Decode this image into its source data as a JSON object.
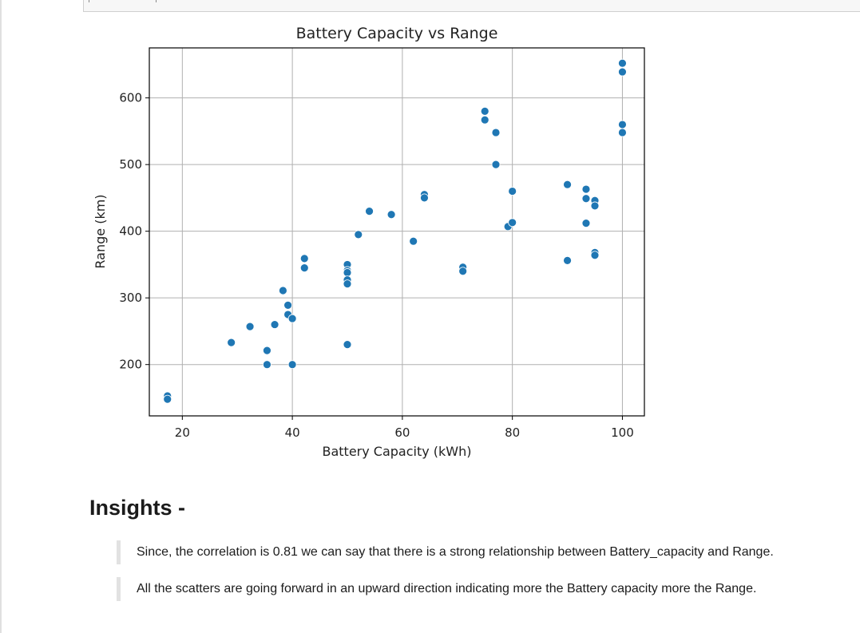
{
  "chart_data": {
    "type": "scatter",
    "title": "Battery Capacity vs Range",
    "xlabel": "Battery Capacity (kWh)",
    "ylabel": "Range (km)",
    "xlim": [
      14,
      104
    ],
    "ylim": [
      123,
      675
    ],
    "xticks": [
      20,
      40,
      60,
      80,
      100
    ],
    "yticks": [
      200,
      300,
      400,
      500,
      600
    ],
    "grid": true,
    "color": "#1f77b4",
    "points": [
      {
        "x": 17.3,
        "y": 153
      },
      {
        "x": 17.3,
        "y": 148
      },
      {
        "x": 28.9,
        "y": 233
      },
      {
        "x": 32.3,
        "y": 257
      },
      {
        "x": 35.4,
        "y": 221
      },
      {
        "x": 35.4,
        "y": 200
      },
      {
        "x": 36.8,
        "y": 260
      },
      {
        "x": 38.3,
        "y": 311
      },
      {
        "x": 39.2,
        "y": 289
      },
      {
        "x": 39.2,
        "y": 275
      },
      {
        "x": 40.0,
        "y": 269
      },
      {
        "x": 40.0,
        "y": 200
      },
      {
        "x": 42.2,
        "y": 359
      },
      {
        "x": 42.2,
        "y": 345
      },
      {
        "x": 50.0,
        "y": 350
      },
      {
        "x": 50.0,
        "y": 341
      },
      {
        "x": 50.0,
        "y": 338
      },
      {
        "x": 50.0,
        "y": 327
      },
      {
        "x": 50.0,
        "y": 321
      },
      {
        "x": 50.0,
        "y": 230
      },
      {
        "x": 52.0,
        "y": 395
      },
      {
        "x": 54.0,
        "y": 430
      },
      {
        "x": 58.0,
        "y": 425
      },
      {
        "x": 62.0,
        "y": 385
      },
      {
        "x": 64.0,
        "y": 455
      },
      {
        "x": 64.0,
        "y": 450
      },
      {
        "x": 71.0,
        "y": 346
      },
      {
        "x": 71.0,
        "y": 340
      },
      {
        "x": 75.0,
        "y": 580
      },
      {
        "x": 75.0,
        "y": 567
      },
      {
        "x": 77.0,
        "y": 548
      },
      {
        "x": 77.0,
        "y": 500
      },
      {
        "x": 79.2,
        "y": 407
      },
      {
        "x": 80.0,
        "y": 460
      },
      {
        "x": 80.0,
        "y": 413
      },
      {
        "x": 90.0,
        "y": 470
      },
      {
        "x": 90.0,
        "y": 356
      },
      {
        "x": 93.4,
        "y": 463
      },
      {
        "x": 93.4,
        "y": 449
      },
      {
        "x": 93.4,
        "y": 412
      },
      {
        "x": 95.0,
        "y": 446
      },
      {
        "x": 95.0,
        "y": 438
      },
      {
        "x": 95.0,
        "y": 368
      },
      {
        "x": 95.0,
        "y": 364
      },
      {
        "x": 100.0,
        "y": 652
      },
      {
        "x": 100.0,
        "y": 639
      },
      {
        "x": 100.0,
        "y": 560
      },
      {
        "x": 100.0,
        "y": 548
      }
    ]
  },
  "insights": {
    "heading": "Insights -",
    "quotes": [
      "Since, the correlation is 0.81 we can say that there is a strong relationship between Battery_capacity and Range.",
      "All the scatters are going forward in an upward direction indicating more the Battery capacity more the Range."
    ]
  }
}
